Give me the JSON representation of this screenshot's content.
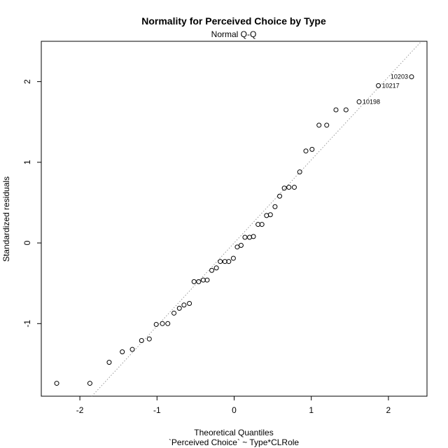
{
  "chart_data": {
    "type": "scatter",
    "title": "Normality for Perceived Choice by Type",
    "subtitle": "Normal Q-Q",
    "xlabel": "Theoretical Quantiles",
    "xlabel2": "`Perceived Choice` ~ Type*CLRole",
    "ylabel": "Standardized residuals",
    "xlim": [
      -2.5,
      2.5
    ],
    "ylim": [
      -1.9,
      2.5
    ],
    "x_ticks": [
      -2,
      -1,
      0,
      1,
      2
    ],
    "y_ticks": [
      -1,
      0,
      1,
      2
    ],
    "x_tick_labels": [
      "-2",
      "-1",
      "0",
      "1",
      "2"
    ],
    "y_tick_labels": [
      "-1",
      "0",
      "1",
      "2"
    ],
    "reference_line": {
      "slope": 1.03,
      "intercept": 0.0,
      "style": "dotted",
      "color": "#999999"
    },
    "points": [
      {
        "x": -2.3,
        "y": -1.74
      },
      {
        "x": -1.87,
        "y": -1.74
      },
      {
        "x": -1.62,
        "y": -1.48
      },
      {
        "x": -1.45,
        "y": -1.35
      },
      {
        "x": -1.32,
        "y": -1.32
      },
      {
        "x": -1.2,
        "y": -1.21
      },
      {
        "x": -1.1,
        "y": -1.19
      },
      {
        "x": -1.01,
        "y": -1.01
      },
      {
        "x": -0.93,
        "y": -1.0
      },
      {
        "x": -0.86,
        "y": -1.0
      },
      {
        "x": -0.78,
        "y": -0.87
      },
      {
        "x": -0.71,
        "y": -0.81
      },
      {
        "x": -0.65,
        "y": -0.77
      },
      {
        "x": -0.58,
        "y": -0.75
      },
      {
        "x": -0.52,
        "y": -0.48
      },
      {
        "x": -0.46,
        "y": -0.48
      },
      {
        "x": -0.4,
        "y": -0.46
      },
      {
        "x": -0.35,
        "y": -0.46
      },
      {
        "x": -0.29,
        "y": -0.34
      },
      {
        "x": -0.23,
        "y": -0.31
      },
      {
        "x": -0.18,
        "y": -0.23
      },
      {
        "x": -0.12,
        "y": -0.23
      },
      {
        "x": -0.07,
        "y": -0.23
      },
      {
        "x": -0.01,
        "y": -0.19
      },
      {
        "x": 0.04,
        "y": -0.05
      },
      {
        "x": 0.09,
        "y": -0.03
      },
      {
        "x": 0.14,
        "y": 0.07
      },
      {
        "x": 0.2,
        "y": 0.07
      },
      {
        "x": 0.25,
        "y": 0.08
      },
      {
        "x": 0.31,
        "y": 0.23
      },
      {
        "x": 0.36,
        "y": 0.23
      },
      {
        "x": 0.42,
        "y": 0.34
      },
      {
        "x": 0.47,
        "y": 0.35
      },
      {
        "x": 0.53,
        "y": 0.45
      },
      {
        "x": 0.59,
        "y": 0.58
      },
      {
        "x": 0.65,
        "y": 0.68
      },
      {
        "x": 0.71,
        "y": 0.69
      },
      {
        "x": 0.78,
        "y": 0.69
      },
      {
        "x": 0.85,
        "y": 0.88
      },
      {
        "x": 0.93,
        "y": 1.14
      },
      {
        "x": 1.01,
        "y": 1.16
      },
      {
        "x": 1.1,
        "y": 1.46
      },
      {
        "x": 1.2,
        "y": 1.46
      },
      {
        "x": 1.32,
        "y": 1.65
      },
      {
        "x": 1.45,
        "y": 1.65
      },
      {
        "x": 1.62,
        "y": 1.75,
        "label": "10198"
      },
      {
        "x": 1.87,
        "y": 1.95,
        "label": "10217"
      },
      {
        "x": 2.3,
        "y": 2.06,
        "label": "10203"
      }
    ]
  }
}
